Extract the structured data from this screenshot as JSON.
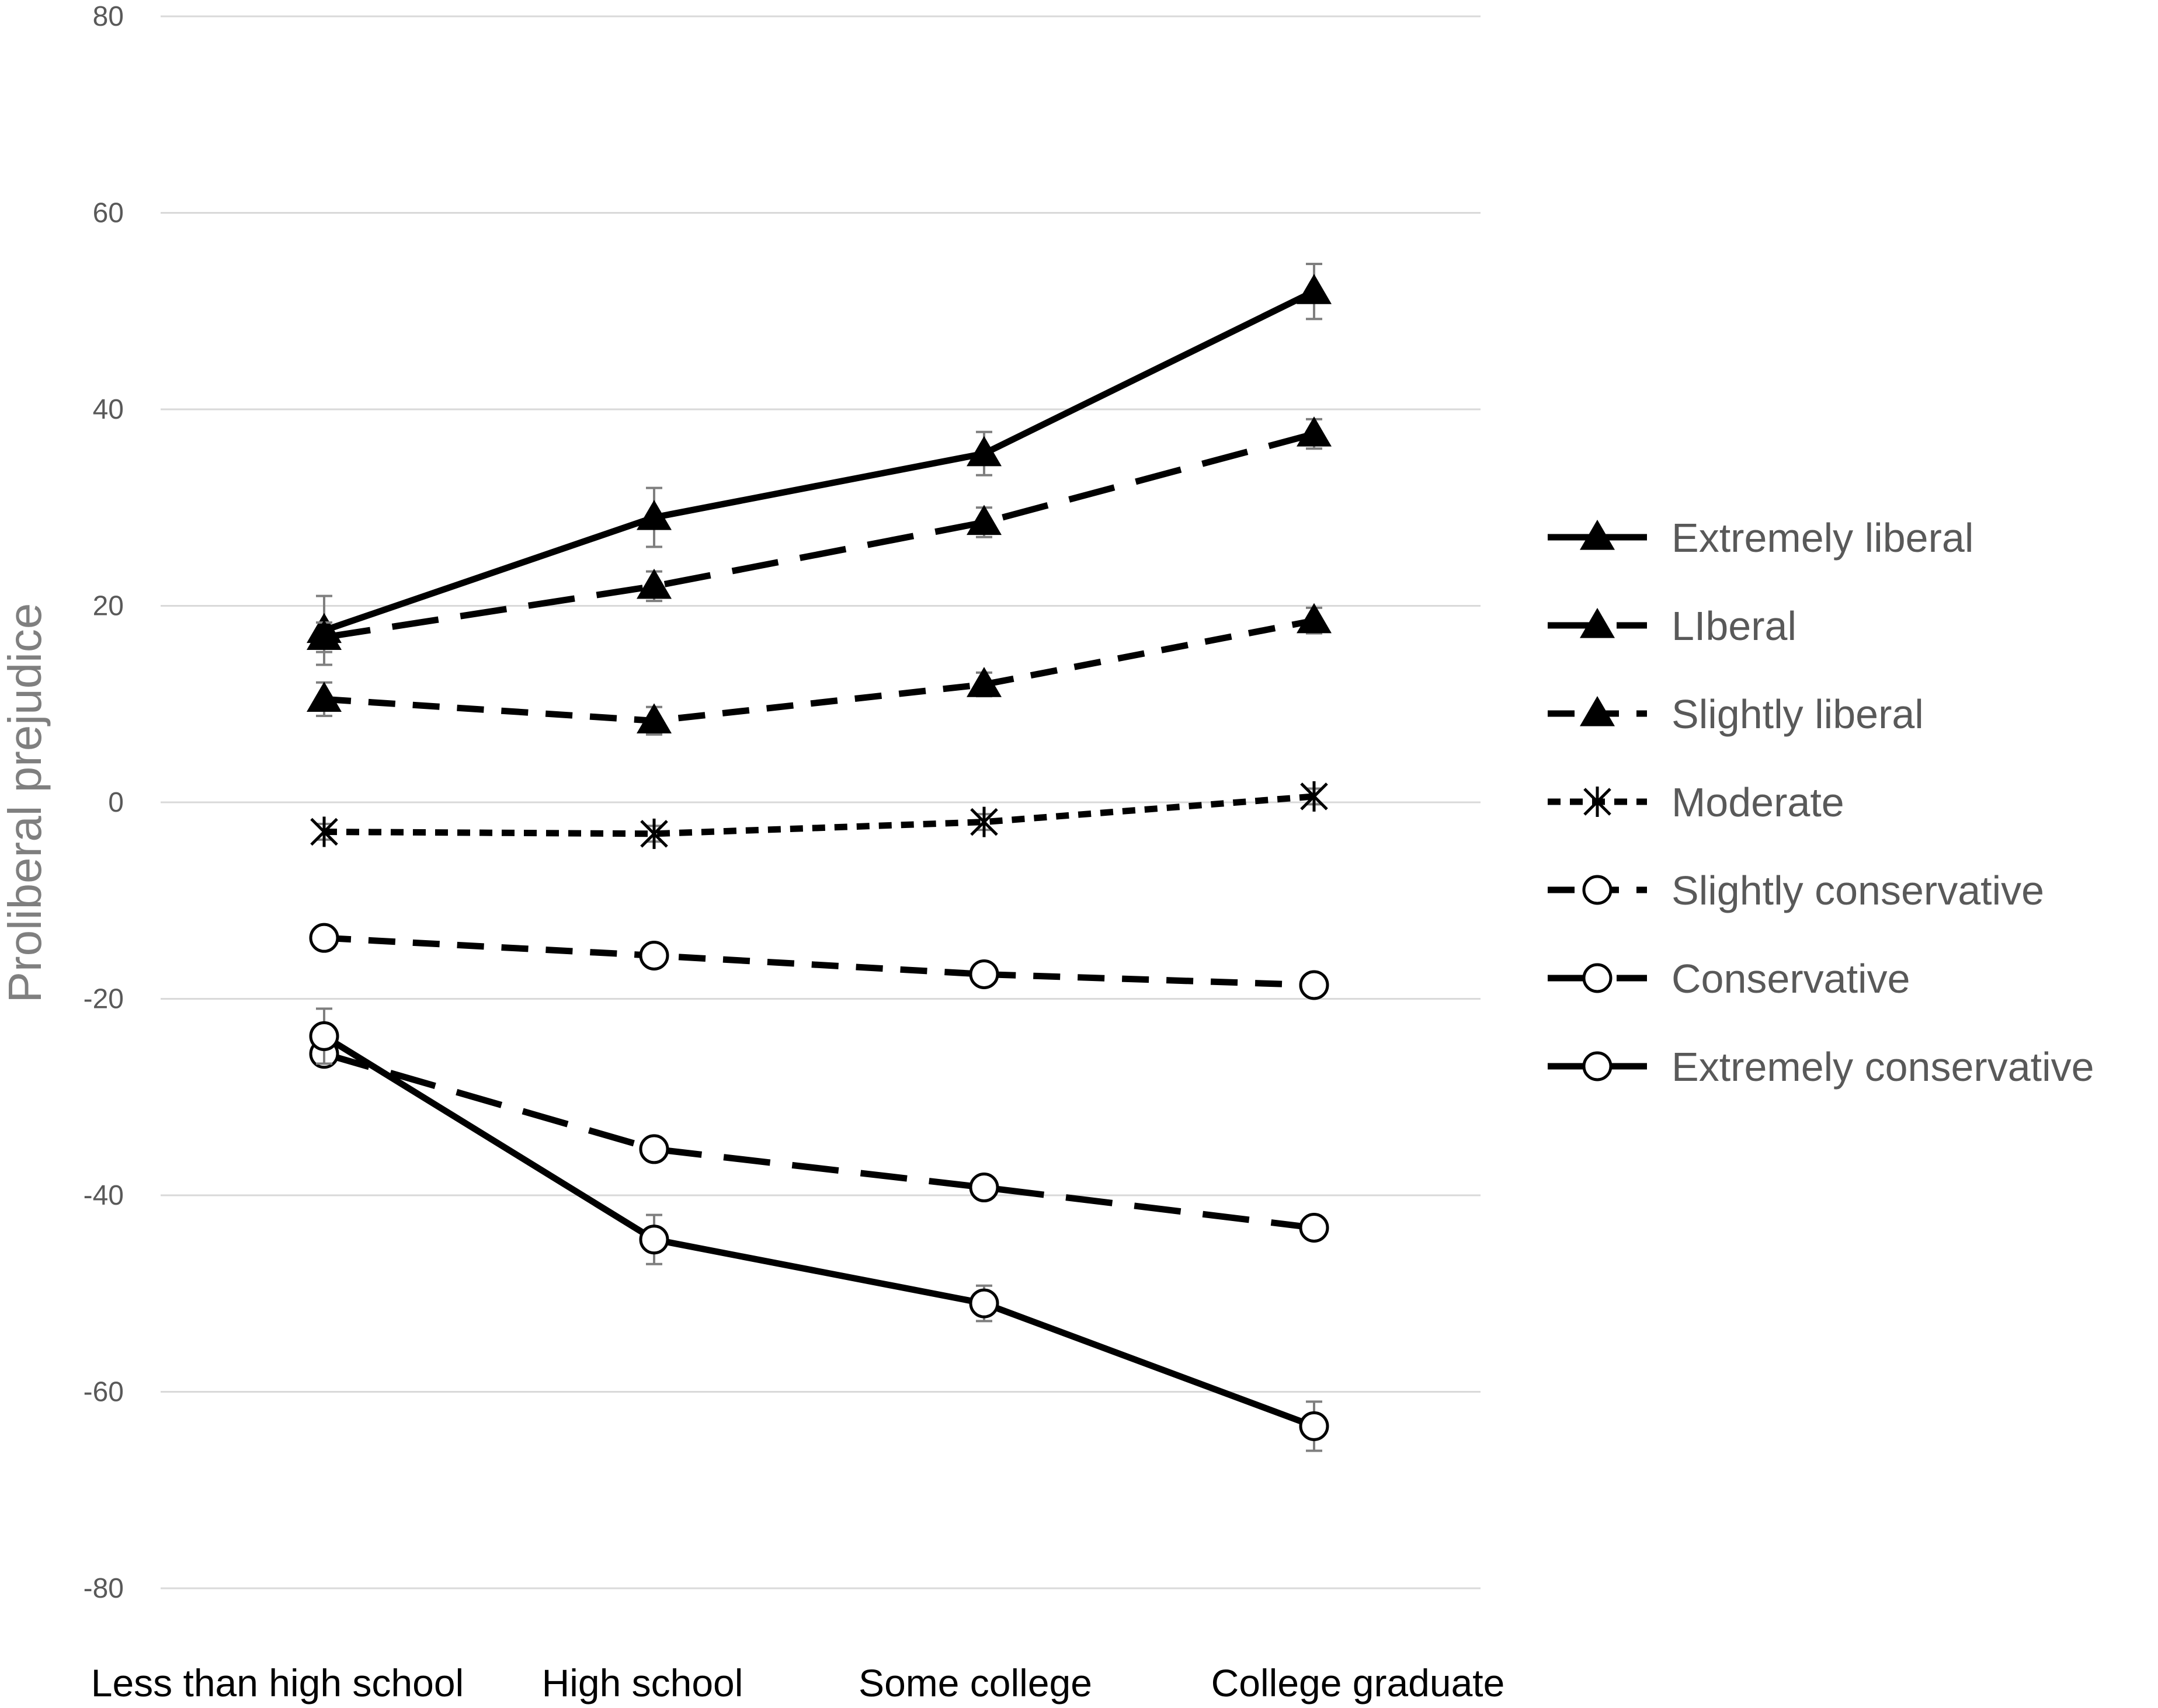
{
  "chart_data": {
    "type": "line",
    "title": "",
    "xlabel": "",
    "ylabel": "Proliberal prejudice",
    "ylim": [
      -80,
      80
    ],
    "yticks": [
      80,
      60,
      40,
      20,
      0,
      -20,
      -40,
      -60,
      -80
    ],
    "categories": [
      "Less than high school",
      "High school",
      "Some college",
      "College graduate"
    ],
    "grid": "horizontal",
    "legend_position": "right",
    "series": [
      {
        "name": "Extremely liberal",
        "values": [
          17.5,
          29,
          35.5,
          52
        ],
        "error": [
          3.5,
          3,
          2.2,
          2.8
        ],
        "marker": "triangle",
        "dash": "solid",
        "color": "#000000"
      },
      {
        "name": "LIberal",
        "values": [
          16.8,
          22,
          28.5,
          37.5
        ],
        "error": [
          1.5,
          1.5,
          1.5,
          1.5
        ],
        "marker": "triangle",
        "dash": "long-dash",
        "color": "#000000"
      },
      {
        "name": "Slightly liberal",
        "values": [
          10.5,
          8.3,
          12,
          18.5
        ],
        "error": [
          1.7,
          1.4,
          1.2,
          1.3
        ],
        "marker": "triangle",
        "dash": "dash",
        "color": "#000000"
      },
      {
        "name": "Moderate",
        "values": [
          -3,
          -3.2,
          -2,
          0.6
        ],
        "error": [
          0.8,
          0.8,
          0.8,
          0.8
        ],
        "marker": "asterisk",
        "dash": "dot",
        "color": "#000000"
      },
      {
        "name": "Slightly conservative",
        "values": [
          -13.8,
          -15.6,
          -17.5,
          -18.6
        ],
        "error": [
          0.8,
          0.8,
          0.8,
          0.8
        ],
        "marker": "circle",
        "dash": "dash",
        "color": "#000000"
      },
      {
        "name": "Conservative",
        "values": [
          -25.6,
          -35.3,
          -39.2,
          -43.3
        ],
        "error": [
          1,
          1,
          1,
          1
        ],
        "marker": "circle",
        "dash": "long-dash",
        "color": "#000000"
      },
      {
        "name": "Extremely conservative",
        "values": [
          -23.8,
          -44.5,
          -51,
          -63.5
        ],
        "error": [
          2.8,
          2.5,
          1.8,
          2.5
        ],
        "marker": "circle",
        "dash": "solid",
        "color": "#000000"
      }
    ]
  },
  "colors": {
    "grid": "#d9d9d9",
    "line": "#000000",
    "errorbar": "#7f7f7f",
    "tick_text": "#595959"
  }
}
